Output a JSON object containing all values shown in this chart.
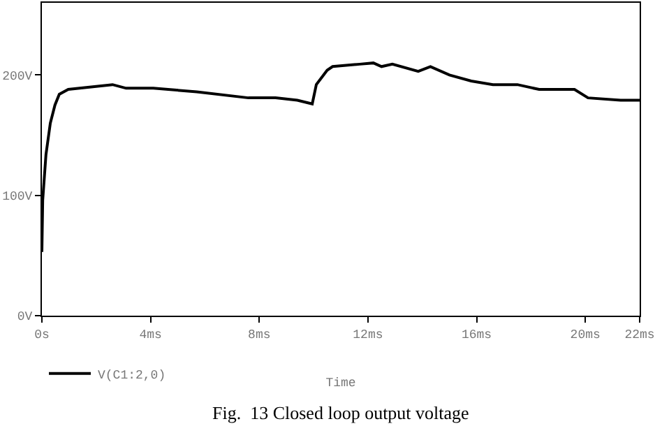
{
  "chart_data": {
    "type": "line",
    "xlabel": "Time",
    "annotations": [
      "Fig.  13 Closed loop output voltage"
    ],
    "x": [
      0,
      0.03,
      0.15,
      0.31,
      0.48,
      0.64,
      0.97,
      2.6,
      3.1,
      4.1,
      5.7,
      7.6,
      8.6,
      9.4,
      9.95,
      10.1,
      10.5,
      10.7,
      11.7,
      12.2,
      12.5,
      12.9,
      13.85,
      14.3,
      15.0,
      15.8,
      16.6,
      17.5,
      18.3,
      19.6,
      20.1,
      21.3,
      22
    ],
    "series": [
      {
        "name": "V(C1:2,0)",
        "color": "#000000",
        "values": [
          53,
          96,
          134,
          160,
          175,
          184,
          188,
          192,
          189,
          189,
          186,
          181,
          181,
          179,
          176,
          192,
          204,
          207,
          209,
          210,
          207,
          209,
          203,
          207,
          200,
          195,
          192,
          192,
          188,
          188,
          181,
          179,
          179
        ]
      }
    ],
    "xlim": [
      0,
      22
    ],
    "ylim": [
      0,
      260
    ],
    "xticks": [
      {
        "value": 0,
        "label": "0s"
      },
      {
        "value": 4,
        "label": "4ms"
      },
      {
        "value": 8,
        "label": "8ms"
      },
      {
        "value": 12,
        "label": "12ms"
      },
      {
        "value": 16,
        "label": "16ms"
      },
      {
        "value": 20,
        "label": "20ms"
      },
      {
        "value": 22,
        "label": "22ms"
      }
    ],
    "yticks": [
      {
        "value": 0,
        "label": "0V"
      },
      {
        "value": 100,
        "label": "100V"
      },
      {
        "value": 200,
        "label": "200V"
      }
    ],
    "legend": "bottom left",
    "marker": "none",
    "line_style": "solid"
  }
}
